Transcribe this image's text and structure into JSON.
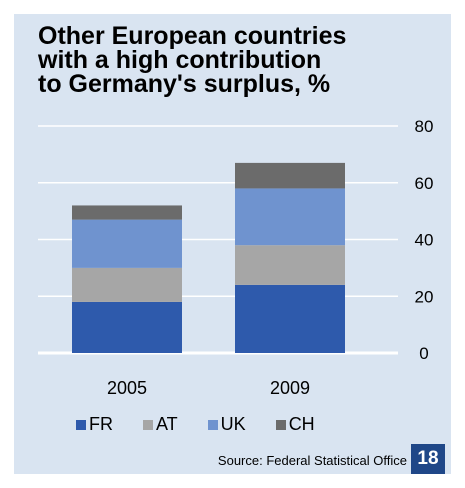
{
  "chart_data": {
    "type": "bar",
    "stacked": true,
    "title": "Other European countries with a high contribution to Germany's surplus, %",
    "categories": [
      "2005",
      "2009"
    ],
    "series": [
      {
        "name": "FR",
        "color": "#2e5aac",
        "values": [
          18,
          24
        ]
      },
      {
        "name": "AT",
        "color": "#a6a6a6",
        "values": [
          12,
          14
        ]
      },
      {
        "name": "UK",
        "color": "#6f93cf",
        "values": [
          17,
          20
        ]
      },
      {
        "name": "CH",
        "color": "#6b6b6b",
        "values": [
          5,
          9
        ]
      }
    ],
    "ylim": [
      0,
      80
    ],
    "yticks": [
      0,
      20,
      40,
      60,
      80
    ],
    "grid": true,
    "legend": "bottom"
  },
  "source": "Source: Federal Statistical Office",
  "page_number": "18"
}
